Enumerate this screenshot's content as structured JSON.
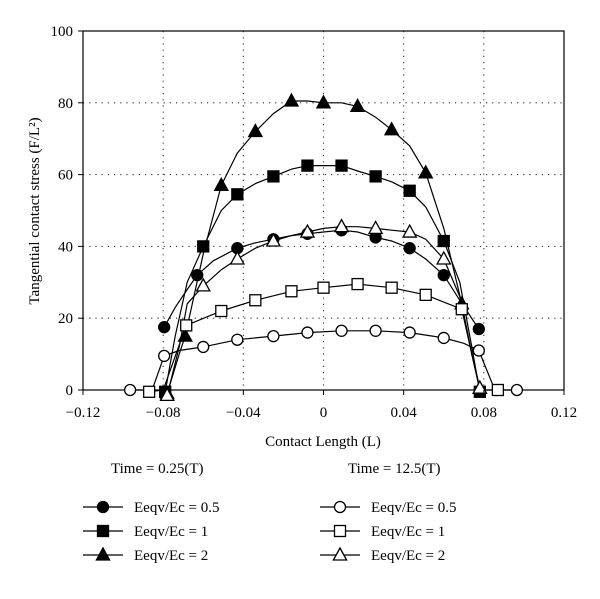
{
  "chart_data": {
    "type": "line",
    "xlabel": "Contact Length (L)",
    "ylabel": "Tangential contact stress (F/L²)",
    "xlim": [
      -0.12,
      0.12
    ],
    "ylim": [
      0,
      100
    ],
    "x_ticks": [
      "−0.12",
      "−0.08",
      "−0.04",
      "0",
      "0.04",
      "0.08",
      "0.12"
    ],
    "y_ticks": [
      "0",
      "20",
      "40",
      "60",
      "80",
      "100"
    ],
    "grid": "dotted",
    "legend_groups": [
      {
        "title": "Time = 0.25(T)",
        "fill": "filled"
      },
      {
        "title": "Time = 12.5(T)",
        "fill": "open"
      }
    ],
    "series": [
      {
        "name": "Eeqv/Ec = 0.5",
        "group": 0,
        "marker": "circle",
        "fill": true,
        "x": [
          -0.0795,
          -0.063,
          -0.043,
          -0.025,
          -0.008,
          0.009,
          0.026,
          0.043,
          0.06,
          0.0775
        ],
        "y": [
          17.5,
          32,
          39.5,
          42,
          43.5,
          44.5,
          42.5,
          39.5,
          32,
          17
        ],
        "line_x": [
          -0.0795,
          -0.074,
          -0.068,
          -0.063,
          -0.055,
          -0.043,
          -0.034,
          -0.025,
          -0.016,
          -0.008,
          0,
          0.009,
          0.017,
          0.026,
          0.034,
          0.043,
          0.051,
          0.06,
          0.068,
          0.0775
        ],
        "line_y": [
          17.5,
          23,
          28,
          32,
          36,
          39.5,
          41,
          42,
          43,
          43.5,
          44,
          44.5,
          44,
          42.5,
          41.5,
          39.5,
          36.5,
          32,
          25,
          17
        ]
      },
      {
        "name": "Eeqv/Ec = 1",
        "group": 0,
        "marker": "square",
        "fill": true,
        "x": [
          -0.079,
          -0.06,
          -0.043,
          -0.025,
          -0.008,
          0.009,
          0.026,
          0.043,
          0.06,
          0.078
        ],
        "y": [
          -0.5,
          40,
          54.5,
          59.5,
          62.5,
          62.5,
          59.5,
          55.5,
          41.5,
          -0.5
        ],
        "line_x": [
          -0.079,
          -0.074,
          -0.068,
          -0.06,
          -0.051,
          -0.043,
          -0.034,
          -0.025,
          -0.016,
          -0.008,
          0,
          0.009,
          0.017,
          0.026,
          0.034,
          0.043,
          0.051,
          0.06,
          0.068,
          0.074,
          0.078
        ],
        "line_y": [
          -0.5,
          15,
          30,
          40,
          50,
          54.5,
          57.5,
          59.5,
          61.5,
          62.5,
          62.5,
          62.5,
          61,
          59.5,
          58,
          55.5,
          51,
          41.5,
          30,
          12,
          -0.5
        ]
      },
      {
        "name": "Eeqv/Ec = 2",
        "group": 0,
        "marker": "triangle",
        "fill": true,
        "x": [
          -0.078,
          -0.069,
          -0.051,
          -0.034,
          -0.016,
          0.0,
          0.017,
          0.034,
          0.051,
          0.069,
          0.078
        ],
        "y": [
          -1,
          15,
          57,
          72,
          80.5,
          80,
          79,
          72.5,
          60.5,
          24,
          0.5
        ],
        "line_x": [
          -0.078,
          -0.072,
          -0.069,
          -0.06,
          -0.051,
          -0.043,
          -0.034,
          -0.025,
          -0.016,
          -0.008,
          0,
          0.009,
          0.017,
          0.026,
          0.034,
          0.043,
          0.051,
          0.06,
          0.069,
          0.074,
          0.078
        ],
        "line_y": [
          -1,
          10,
          15,
          38,
          57,
          66,
          72,
          77,
          80.5,
          80.5,
          80,
          80,
          79,
          76,
          72.5,
          68,
          60.5,
          45,
          24,
          10,
          0.5
        ]
      },
      {
        "name": "Eeqv/Ec = 0.5",
        "group": 1,
        "marker": "circle",
        "fill": false,
        "x": [
          -0.0965,
          -0.0795,
          -0.06,
          -0.043,
          -0.025,
          -0.008,
          0.009,
          0.026,
          0.043,
          0.06,
          0.0775,
          0.0965
        ],
        "y": [
          0,
          9.5,
          12,
          14,
          15,
          16,
          16.5,
          16.5,
          16,
          14.5,
          11,
          0
        ],
        "line_x": [
          -0.0965,
          -0.0855,
          -0.0795,
          -0.072,
          -0.06,
          -0.043,
          -0.025,
          -0.008,
          0.009,
          0.026,
          0.043,
          0.06,
          0.07,
          0.0775,
          0.0855,
          0.0965
        ],
        "line_y": [
          0,
          0,
          9.5,
          11,
          12,
          14,
          15,
          16,
          16.5,
          16.5,
          16,
          14.5,
          13,
          11,
          0,
          0
        ]
      },
      {
        "name": "Eeqv/Ec = 1",
        "group": 1,
        "marker": "square",
        "fill": false,
        "x": [
          -0.087,
          -0.0685,
          -0.051,
          -0.034,
          -0.016,
          0.0,
          0.017,
          0.034,
          0.051,
          0.069,
          0.087
        ],
        "y": [
          -0.5,
          18,
          22,
          25,
          27.5,
          28.5,
          29.5,
          28.5,
          26.5,
          22.5,
          0
        ],
        "line_x": [
          -0.087,
          -0.08,
          -0.0685,
          -0.051,
          -0.034,
          -0.016,
          0,
          0.017,
          0.034,
          0.051,
          0.069,
          0.078,
          0.087
        ],
        "line_y": [
          -0.5,
          0,
          18,
          22,
          25,
          27.5,
          28.5,
          29.5,
          28.5,
          26.5,
          22.5,
          0,
          0
        ]
      },
      {
        "name": "Eeqv/Ec = 2",
        "group": 1,
        "marker": "triangle",
        "fill": false,
        "x": [
          -0.078,
          -0.06,
          -0.043,
          -0.025,
          -0.008,
          0.009,
          0.026,
          0.043,
          0.06,
          0.078
        ],
        "y": [
          -1.5,
          29,
          36.5,
          41.5,
          44,
          45.5,
          45,
          44,
          36.5,
          0.5
        ],
        "line_x": [
          -0.078,
          -0.072,
          -0.068,
          -0.06,
          -0.051,
          -0.043,
          -0.034,
          -0.025,
          -0.016,
          -0.008,
          0,
          0.009,
          0.017,
          0.026,
          0.034,
          0.043,
          0.051,
          0.06,
          0.068,
          0.074,
          0.078
        ],
        "line_y": [
          -1.5,
          12,
          24,
          29,
          33.5,
          36.5,
          39.5,
          41.5,
          43,
          44,
          45,
          45.5,
          45.5,
          45,
          44.5,
          44,
          42,
          36.5,
          26,
          10,
          0.5
        ]
      }
    ]
  }
}
